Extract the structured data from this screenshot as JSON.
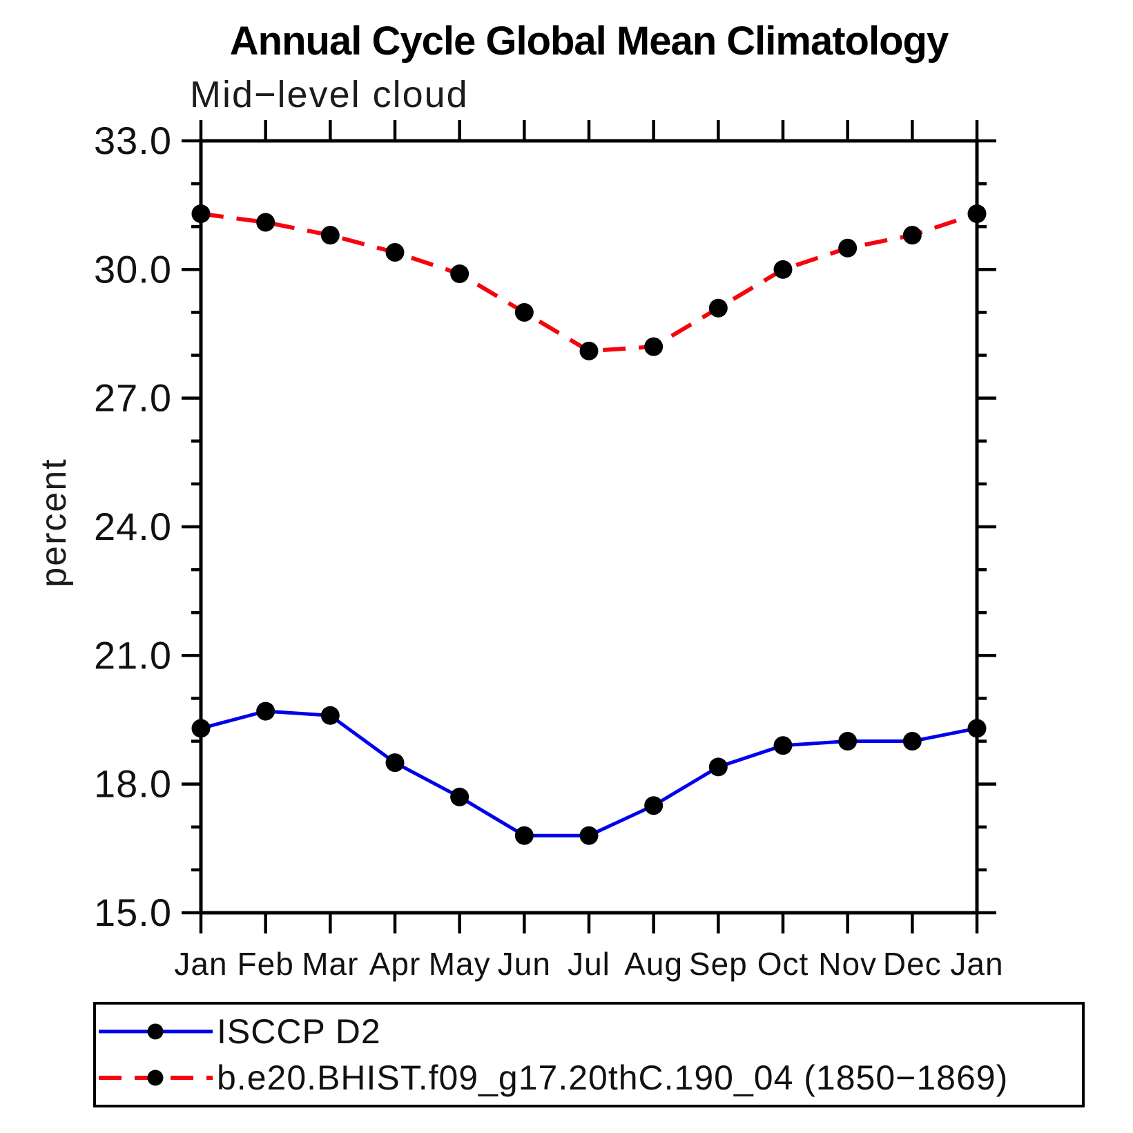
{
  "title": "Annual Cycle Global Mean Climatology",
  "subtitle": "Mid−level cloud",
  "ylabel": "percent",
  "chart_data": {
    "type": "line",
    "categories": [
      "Jan",
      "Feb",
      "Mar",
      "Apr",
      "May",
      "Jun",
      "Jul",
      "Aug",
      "Sep",
      "Oct",
      "Nov",
      "Dec",
      "Jan"
    ],
    "xlabel": "",
    "ylim": [
      15.0,
      33.0
    ],
    "y_major_ticks": [
      15.0,
      18.0,
      21.0,
      24.0,
      27.0,
      30.0,
      33.0
    ],
    "y_major_tick_labels": [
      "15.0",
      "18.0",
      "21.0",
      "24.0",
      "27.0",
      "30.0",
      "33.0"
    ],
    "y_minor_tick_step": 1.0,
    "grid": false,
    "legend_position": "bottom-left-box",
    "marker_color": "#000000",
    "axis_color": "#000000",
    "series": [
      {
        "name": "ISCCP D2",
        "color": "#0000EB",
        "line_style": "solid",
        "marker": "circle",
        "values": [
          19.3,
          19.7,
          19.6,
          18.5,
          17.7,
          16.8,
          16.8,
          17.5,
          18.4,
          18.9,
          19.0,
          19.0,
          19.3
        ]
      },
      {
        "name": "b.e20.BHIST.f09_g17.20thC.190_04 (1850−1869)",
        "color": "#F5040E",
        "line_style": "dashed",
        "marker": "circle",
        "values": [
          31.3,
          31.1,
          30.8,
          30.4,
          29.9,
          29.0,
          28.1,
          28.2,
          29.1,
          30.0,
          30.5,
          30.8,
          31.3
        ]
      }
    ]
  }
}
